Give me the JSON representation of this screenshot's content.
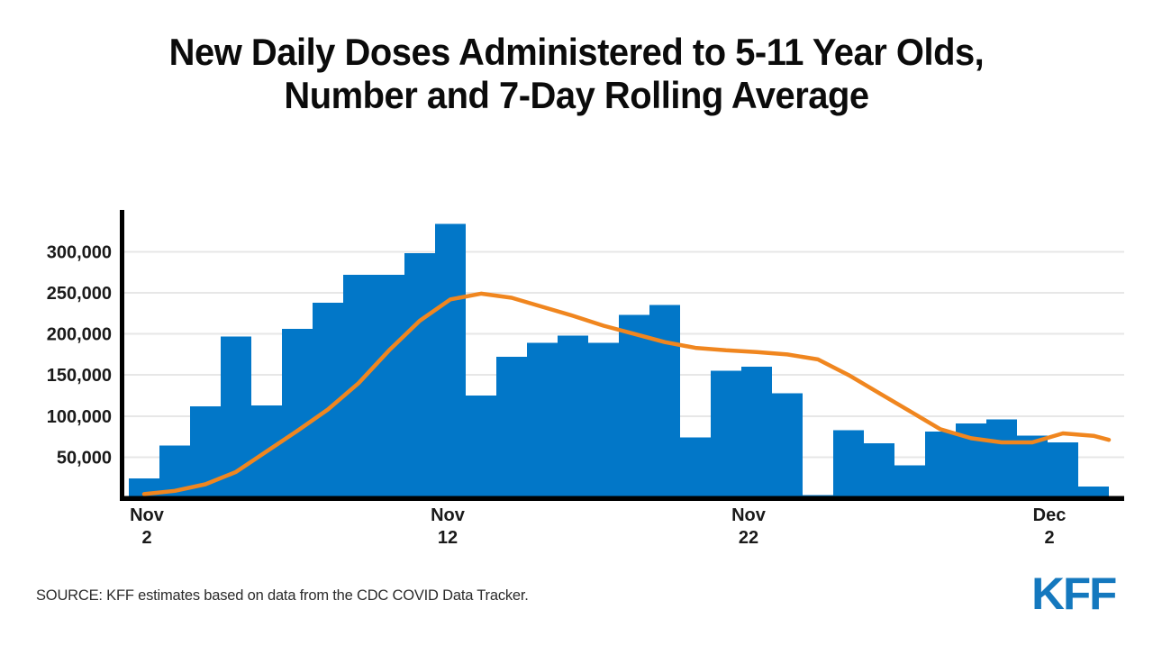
{
  "title": {
    "line1": "New Daily Doses Administered to 5-11 Year Olds,",
    "line2": "Number and 7-Day Rolling Average"
  },
  "source_note": "SOURCE: KFF estimates based on data from the CDC COVID Data Tracker.",
  "logo_text": "KFF",
  "colors": {
    "bar_blue": "#0277C8",
    "line_orange": "#F0861F",
    "gridline_gray": "#E7E7E7",
    "axis_black": "#000000",
    "tick_text": "#1A1A1A",
    "logo_blue": "#1478BE"
  },
  "chart_data": {
    "type": "bar",
    "title": "New Daily Doses Administered to 5-11 Year Olds, Number and 7-Day Rolling Average",
    "xlabel": "",
    "ylabel": "",
    "grid": "horizontal",
    "ylim": [
      0,
      350000
    ],
    "y_ticks": [
      50000,
      100000,
      150000,
      200000,
      250000,
      300000
    ],
    "y_tick_labels": [
      "50,000",
      "100,000",
      "150,000",
      "200,000",
      "250,000",
      "300,000"
    ],
    "x": [
      "Nov 2",
      "Nov 3",
      "Nov 4",
      "Nov 5",
      "Nov 6",
      "Nov 7",
      "Nov 8",
      "Nov 9",
      "Nov 10",
      "Nov 11",
      "Nov 12",
      "Nov 13",
      "Nov 14",
      "Nov 15",
      "Nov 16",
      "Nov 17",
      "Nov 18",
      "Nov 19",
      "Nov 20",
      "Nov 21",
      "Nov 22",
      "Nov 23",
      "Nov 24",
      "Nov 25",
      "Nov 26",
      "Nov 27",
      "Nov 28",
      "Nov 29",
      "Nov 30",
      "Dec 1",
      "Dec 2",
      "Dec 3"
    ],
    "x_ticks": [
      {
        "index": 0,
        "line1": "Nov",
        "line2": "2"
      },
      {
        "index": 10,
        "line1": "Nov",
        "line2": "12"
      },
      {
        "index": 20,
        "line1": "Nov",
        "line2": "22"
      },
      {
        "index": 30,
        "line1": "Dec",
        "line2": "2"
      }
    ],
    "series": [
      {
        "name": "New daily doses (number)",
        "type": "bar",
        "values": [
          24000,
          64000,
          112000,
          197000,
          113000,
          206000,
          238000,
          272000,
          272000,
          298000,
          334000,
          125000,
          172000,
          189000,
          198000,
          189000,
          223000,
          235000,
          74000,
          155000,
          160000,
          128000,
          4000,
          83000,
          67000,
          40000,
          81000,
          91000,
          96000,
          76000,
          68000,
          14000
        ]
      },
      {
        "name": "7-day rolling average",
        "type": "line",
        "values": [
          5000,
          9000,
          17000,
          32000,
          57000,
          82000,
          108000,
          140000,
          180000,
          216000,
          242000,
          249000,
          244000,
          233000,
          222000,
          210000,
          200000,
          190000,
          183000,
          180000,
          178000,
          175000,
          169000,
          150000,
          128000,
          106000,
          84000,
          73000,
          68000,
          68000,
          79000,
          76000
        ],
        "right_edge_value": 71000
      }
    ]
  }
}
